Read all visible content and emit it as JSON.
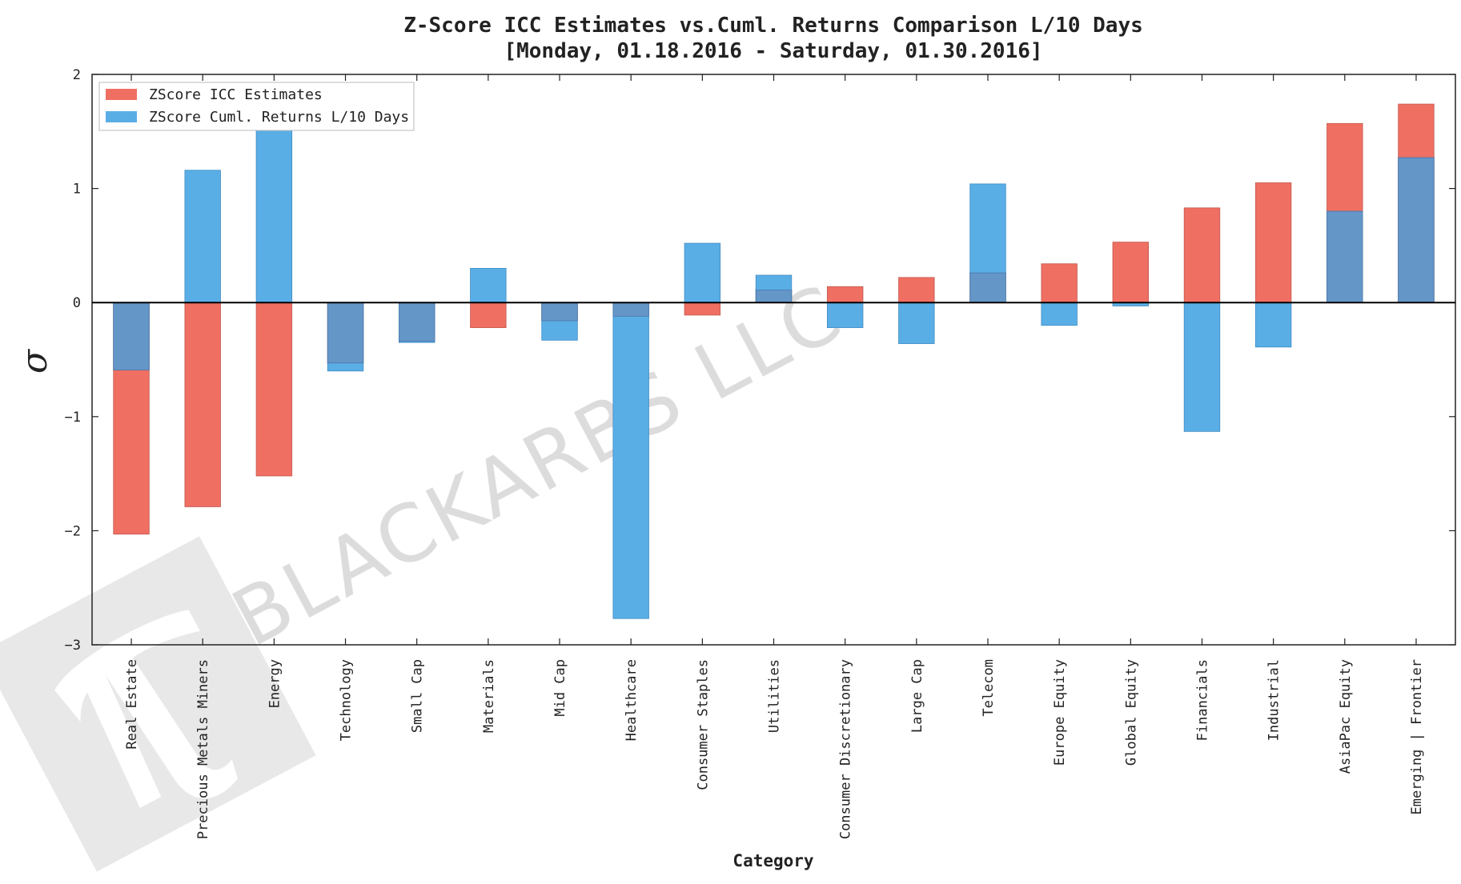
{
  "chart_data": {
    "type": "bar",
    "title": "Z-Score ICC Estimates vs.Cuml. Returns Comparison L/10 Days",
    "subtitle": "[Monday, 01.18.2016 - Saturday, 01.30.2016]",
    "xlabel": "Category",
    "ylabel": "σ",
    "ylim": [
      -3,
      2
    ],
    "yticks": [
      2,
      1,
      0,
      -1,
      -2,
      -3
    ],
    "ytick_labels": [
      "2",
      "1",
      "0",
      "−1",
      "−2",
      "−3"
    ],
    "grid": false,
    "legend_position": "top-left",
    "categories": [
      "Real Estate",
      "Precious Metals Miners",
      "Energy",
      "Technology",
      "Small Cap",
      "Materials",
      "Mid Cap",
      "Healthcare",
      "Consumer Staples",
      "Utilities",
      "Consumer Discretionary",
      "Large Cap",
      "Telecom",
      "Europe Equity",
      "Global Equity",
      "Financials",
      "Industrial",
      "AsiaPac Equity",
      "Emerging | Frontier"
    ],
    "series": [
      {
        "name": "ZScore ICC Estimates",
        "color": "#ef6f62",
        "values": [
          -2.03,
          -1.79,
          -1.52,
          -0.53,
          -0.34,
          -0.22,
          -0.16,
          -0.12,
          -0.11,
          0.11,
          0.14,
          0.22,
          0.26,
          0.34,
          0.53,
          0.83,
          1.05,
          1.57,
          1.74
        ]
      },
      {
        "name": "ZScore Cuml. Returns L/10 Days",
        "color": "#5aaee6",
        "values": [
          -0.59,
          1.16,
          1.63,
          -0.6,
          -0.35,
          0.3,
          -0.33,
          -2.77,
          0.52,
          0.24,
          -0.22,
          -0.36,
          1.04,
          -0.2,
          -0.03,
          -1.13,
          -0.39,
          0.8,
          1.27
        ]
      }
    ],
    "overlap_color": "#6496c8"
  },
  "watermark": {
    "text": "BLACKARBS LLC",
    "logo_icon": "pi-logo-icon"
  }
}
